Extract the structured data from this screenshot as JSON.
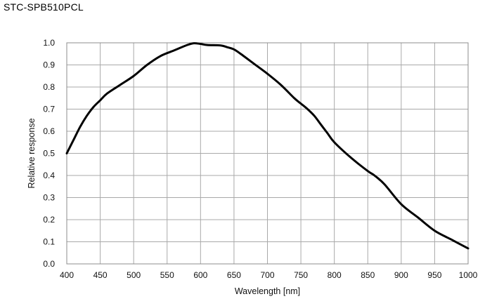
{
  "chart_data": {
    "type": "line",
    "title": "STC-SPB510PCL",
    "xlabel": "Wavelength  [nm]",
    "ylabel": "Relative  response",
    "xlim": [
      400,
      1000
    ],
    "ylim": [
      0.0,
      1.0
    ],
    "xticks": [
      "400",
      "450",
      "500",
      "550",
      "600",
      "650",
      "700",
      "750",
      "800",
      "850",
      "900",
      "950",
      "1000"
    ],
    "yticks": [
      "0.0",
      "0.1",
      "0.2",
      "0.3",
      "0.4",
      "0.5",
      "0.6",
      "0.7",
      "0.8",
      "0.9",
      "1.0"
    ],
    "grid": true,
    "series": [
      {
        "color": "#000000",
        "x": [
          400,
          410,
          420,
          430,
          440,
          450,
          460,
          480,
          500,
          520,
          540,
          560,
          580,
          590,
          600,
          610,
          630,
          640,
          650,
          660,
          680,
          700,
          720,
          740,
          750,
          760,
          770,
          780,
          790,
          800,
          825,
          850,
          860,
          875,
          900,
          925,
          950,
          975,
          1000
        ],
        "y": [
          0.5,
          0.56,
          0.62,
          0.67,
          0.71,
          0.74,
          0.77,
          0.81,
          0.85,
          0.9,
          0.94,
          0.965,
          0.99,
          0.998,
          0.995,
          0.99,
          0.988,
          0.98,
          0.97,
          0.95,
          0.905,
          0.86,
          0.81,
          0.75,
          0.725,
          0.7,
          0.67,
          0.63,
          0.59,
          0.55,
          0.48,
          0.42,
          0.4,
          0.36,
          0.27,
          0.21,
          0.15,
          0.11,
          0.07
        ]
      }
    ]
  }
}
